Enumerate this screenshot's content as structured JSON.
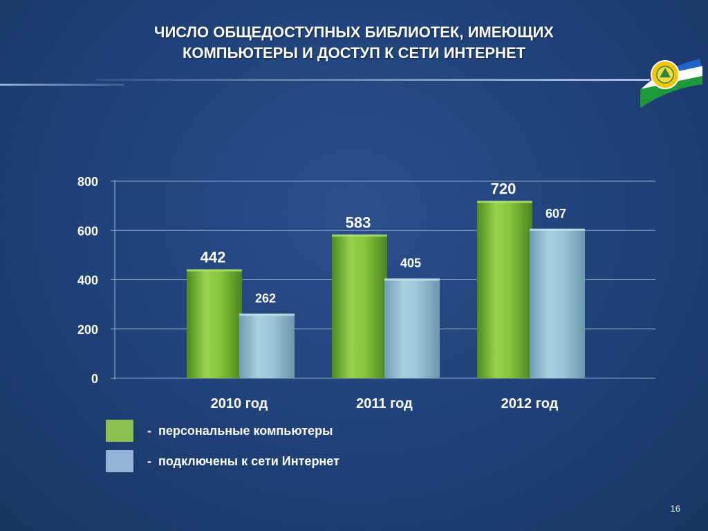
{
  "slide": {
    "title_line1": "ЧИСЛО ОБЩЕДОСТУПНЫХ БИБЛИОТЕК, ИМЕЮЩИХ",
    "title_line2": "КОМПЬЮТЕРЫ И ДОСТУП К СЕТИ ИНТЕРНЕТ",
    "page_number": "16",
    "emblem_icon": "bashkortostan-flag-emblem-icon"
  },
  "chart_data": {
    "type": "bar",
    "categories": [
      "2010 год",
      "2011 год",
      "2012 год"
    ],
    "series": [
      {
        "name": "персональные компьютеры",
        "values": [
          442,
          583,
          720
        ],
        "color": "#7fbf3a"
      },
      {
        "name": "подключены к сети Интернет",
        "values": [
          262,
          405,
          607
        ],
        "color": "#8fbfd3"
      }
    ],
    "ylim": [
      0,
      800
    ],
    "yticks": [
      0,
      200,
      400,
      600,
      800
    ],
    "grid": true,
    "legend": "bottom-left"
  },
  "legend": {
    "dash": "-",
    "items": [
      {
        "label": "персональные компьютеры",
        "color": "#8fbf4e"
      },
      {
        "label": "подключены к сети Интернет",
        "color": "#95b3d7"
      }
    ]
  }
}
